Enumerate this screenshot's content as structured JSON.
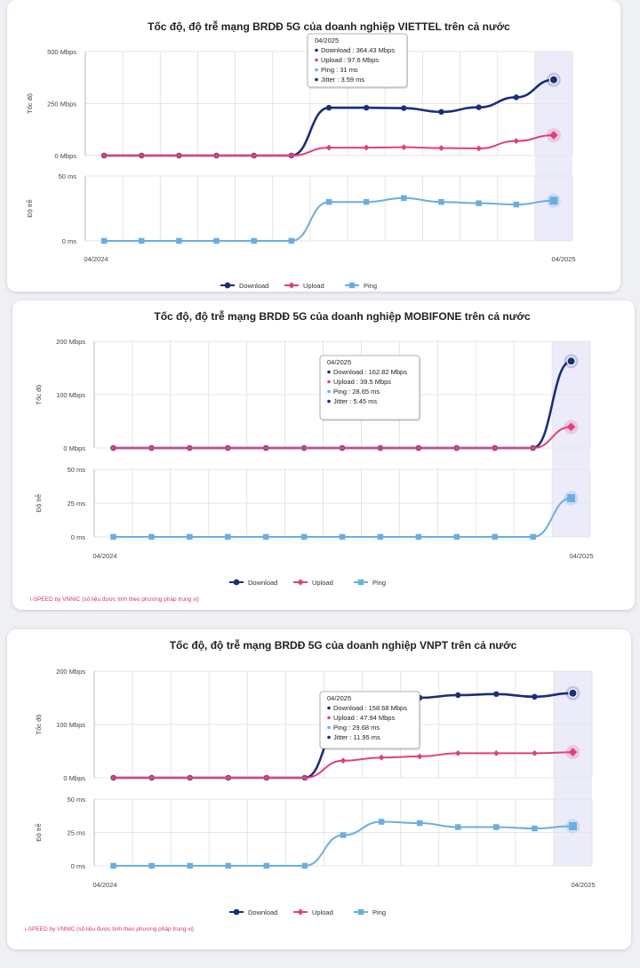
{
  "chart_data": [
    {
      "type": "line",
      "title": "Tốc độ, độ trễ mạng BRDĐ 5G của doanh nghiệp VIETTEL trên cả nước",
      "x_start_label": "04/2024",
      "x_end_label": "04/2025",
      "speed_axis": {
        "label": "Tốc độ",
        "ticks": [
          "500 Mbps",
          "250 Mbps",
          "0 Mbps"
        ],
        "range": [
          0,
          500
        ]
      },
      "latency_axis": {
        "label": "Độ trễ",
        "ticks": [
          "50 ms",
          "0 ms"
        ],
        "range": [
          0,
          50
        ]
      },
      "speed_series": [
        {
          "name": "Download",
          "color": "#1a2f7a",
          "values": [
            0,
            0,
            0,
            0,
            0,
            0,
            230,
            230,
            228,
            210,
            232,
            280,
            364.43
          ]
        },
        {
          "name": "Upload",
          "color": "#e0407f",
          "values": [
            0,
            0,
            0,
            0,
            0,
            0,
            38,
            38,
            40,
            36,
            34,
            70,
            97.6
          ]
        }
      ],
      "latency_series": [
        {
          "name": "Ping",
          "color": "#6aaee0",
          "values": [
            0,
            0,
            0,
            0,
            0,
            0,
            30,
            30,
            33,
            30,
            29,
            28,
            31
          ]
        }
      ],
      "legend": [
        "Download",
        "Upload",
        "Ping"
      ],
      "tooltip": {
        "title": "04/2025",
        "lines": [
          "Download : 364.43 Mbps",
          "Upload : 97.6 Mbps",
          "Ping : 31 ms",
          "Jitter : 3.59 ms"
        ],
        "dot_colors": [
          "#1a2f7a",
          "#e0407f",
          "#6aaee0",
          "#1a2f7a"
        ]
      },
      "footnote": ""
    },
    {
      "type": "line",
      "title": "Tốc độ, độ trễ mạng BRDĐ 5G của doanh nghiệp MOBIFONE trên cả nước",
      "x_start_label": "04/2024",
      "x_end_label": "04/2025",
      "speed_axis": {
        "label": "Tốc độ",
        "ticks": [
          "200 Mbps",
          "100 Mbps",
          "0 Mbps"
        ],
        "range": [
          0,
          200
        ]
      },
      "latency_axis": {
        "label": "Độ trễ",
        "ticks": [
          "50 ms",
          "25 ms",
          "0 ms"
        ],
        "range": [
          0,
          50
        ]
      },
      "speed_series": [
        {
          "name": "Download",
          "color": "#1a2f7a",
          "values": [
            0,
            0,
            0,
            0,
            0,
            0,
            0,
            0,
            0,
            0,
            0,
            0,
            162.82
          ]
        },
        {
          "name": "Upload",
          "color": "#e0407f",
          "values": [
            0,
            0,
            0,
            0,
            0,
            0,
            0,
            0,
            0,
            0,
            0,
            0,
            39.5
          ]
        }
      ],
      "latency_series": [
        {
          "name": "Ping",
          "color": "#6aaee0",
          "values": [
            0,
            0,
            0,
            0,
            0,
            0,
            0,
            0,
            0,
            0,
            0,
            0,
            28.65
          ]
        }
      ],
      "legend": [
        "Download",
        "Upload",
        "Ping"
      ],
      "tooltip": {
        "title": "04/2025",
        "lines": [
          "Download : 162.82 Mbps",
          "Upload : 39.5 Mbps",
          "Ping : 28.65 ms",
          "Jitter : 5.45 ms"
        ],
        "dot_colors": [
          "#1a2f7a",
          "#e0407f",
          "#6aaee0",
          "#1a2f7a"
        ]
      },
      "footnote": "i-SPEED by VNNIC (số liệu được tính theo phương pháp trung vị)"
    },
    {
      "type": "line",
      "title": "Tốc độ, độ trễ mạng BRDĐ 5G của doanh nghiệp VNPT trên cả nước",
      "x_start_label": "04/2024",
      "x_end_label": "04/2025",
      "speed_axis": {
        "label": "Tốc độ",
        "ticks": [
          "200 Mbps",
          "100 Mbps",
          "0 Mbps"
        ],
        "range": [
          0,
          200
        ]
      },
      "latency_axis": {
        "label": "Độ trễ",
        "ticks": [
          "50 ms",
          "25 ms",
          "0 ms"
        ],
        "range": [
          0,
          50
        ]
      },
      "speed_series": [
        {
          "name": "Download",
          "color": "#1a2f7a",
          "values": [
            0,
            0,
            0,
            0,
            0,
            0,
            110,
            145,
            150,
            155,
            157,
            152,
            158.68
          ]
        },
        {
          "name": "Upload",
          "color": "#e0407f",
          "values": [
            0,
            0,
            0,
            0,
            0,
            0,
            32,
            38,
            40,
            46,
            46,
            46,
            47.94
          ]
        }
      ],
      "latency_series": [
        {
          "name": "Ping",
          "color": "#6aaee0",
          "values": [
            0,
            0,
            0,
            0,
            0,
            0,
            23,
            33,
            32,
            29,
            29,
            28,
            29.68
          ]
        }
      ],
      "legend": [
        "Download",
        "Upload",
        "Ping"
      ],
      "tooltip": {
        "title": "04/2025",
        "lines": [
          "Download : 158.68 Mbps",
          "Upload : 47.94 Mbps",
          "Ping : 29.68 ms",
          "Jitter : 11.95 ms"
        ],
        "dot_colors": [
          "#1a2f7a",
          "#e0407f",
          "#6aaee0",
          "#1a2f7a"
        ]
      },
      "footnote": "i-SPEED by VNNIC (số liệu được tính theo phương pháp trung vị)"
    }
  ]
}
